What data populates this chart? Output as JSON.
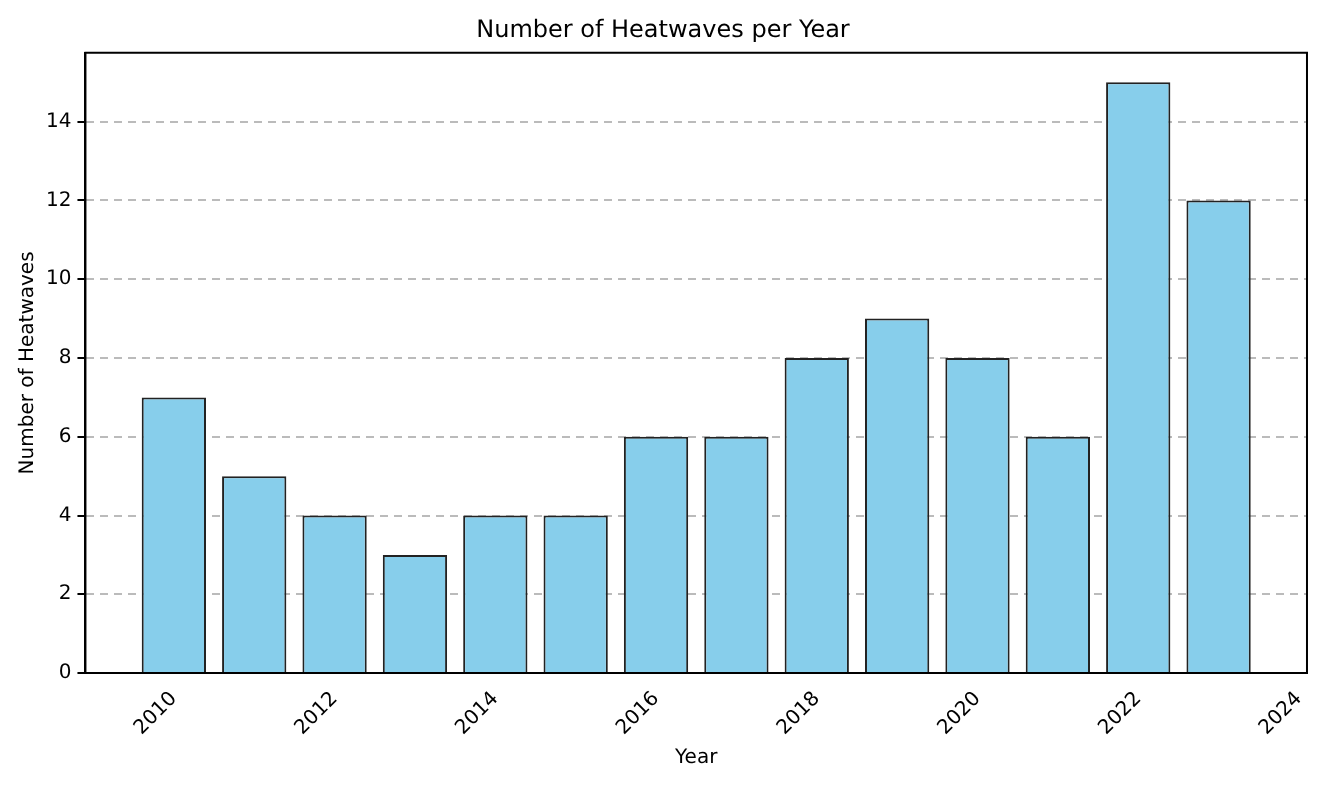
{
  "chart_data": {
    "type": "bar",
    "title": "Number of Heatwaves per Year",
    "xlabel": "Year",
    "ylabel": "Number of Heatwaves",
    "x": [
      2010,
      2011,
      2012,
      2013,
      2014,
      2015,
      2016,
      2017,
      2018,
      2019,
      2020,
      2021,
      2022,
      2023
    ],
    "values": [
      7,
      5,
      4,
      3,
      4,
      4,
      6,
      6,
      8,
      9,
      8,
      6,
      15,
      12
    ],
    "color": "#87ceeb",
    "xlim": [
      2008.9,
      2024.1
    ],
    "xticks": [
      2010,
      2012,
      2014,
      2016,
      2018,
      2020,
      2022,
      2024
    ],
    "ylim": [
      0,
      15.75
    ],
    "yticks": [
      0,
      2,
      4,
      6,
      8,
      10,
      12,
      14
    ],
    "grid": "y",
    "legend": false
  }
}
